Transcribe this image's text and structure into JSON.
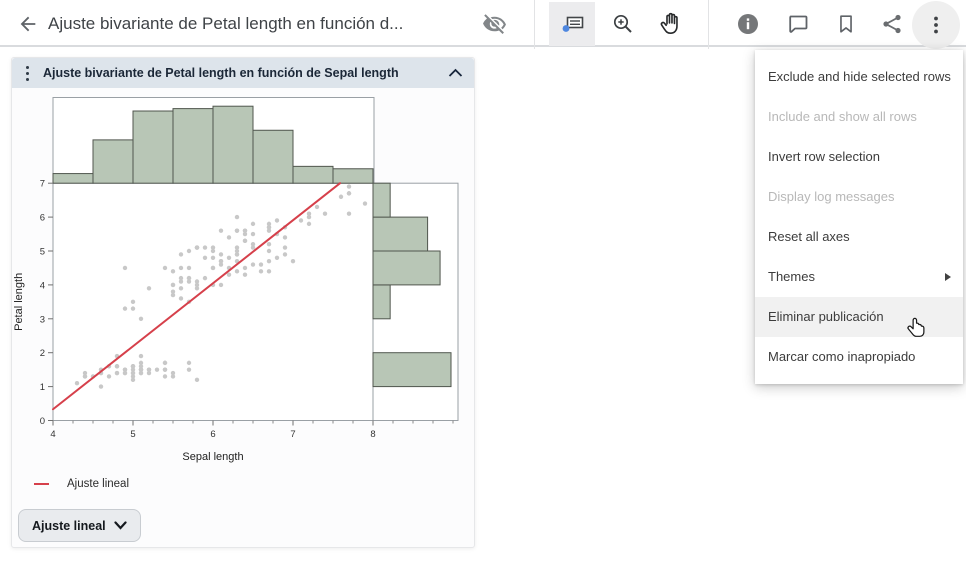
{
  "topbar": {
    "title": "Ajuste bivariante de Petal length en función d...",
    "icons": [
      "back-arrow",
      "visibility-off",
      "datatip-tool",
      "zoom-in-tool",
      "grab-tool",
      "info",
      "comment",
      "bookmark",
      "share",
      "more-vert"
    ],
    "selected_tool": "datatip-tool",
    "active_button": "more-vert"
  },
  "panel": {
    "header_title": "Ajuste bivariante de Petal length en función de Sepal length",
    "legend_label": "Ajuste lineal",
    "fit_button_label": "Ajuste lineal"
  },
  "menu": {
    "items": [
      {
        "label": "Exclude and hide selected rows",
        "enabled": true,
        "highlighted": false,
        "submenu": false
      },
      {
        "label": "Include and show all rows",
        "enabled": false,
        "highlighted": false,
        "submenu": false
      },
      {
        "label": "Invert row selection",
        "enabled": true,
        "highlighted": false,
        "submenu": false
      },
      {
        "label": "Display log messages",
        "enabled": false,
        "highlighted": false,
        "submenu": false
      },
      {
        "label": "Reset all axes",
        "enabled": true,
        "highlighted": false,
        "submenu": false
      },
      {
        "label": "Themes",
        "enabled": true,
        "highlighted": false,
        "submenu": true
      },
      {
        "label": "Eliminar publicación",
        "enabled": true,
        "highlighted": true,
        "submenu": false
      },
      {
        "label": "Marcar como inapropiado",
        "enabled": true,
        "highlighted": false,
        "submenu": false
      }
    ]
  },
  "chart_data": {
    "type": "scatter",
    "title": "Ajuste bivariante de Petal length en función de Sepal length",
    "xlabel": "Sepal length",
    "ylabel": "Petal length",
    "xlim": [
      4,
      9.06
    ],
    "ylim": [
      0,
      7
    ],
    "xticks": [
      4,
      5,
      6,
      7,
      8
    ],
    "yticks": [
      0,
      1,
      2,
      3,
      4,
      5,
      6,
      7
    ],
    "grid": false,
    "legend": [
      {
        "label": "Ajuste lineal",
        "color": "#d6404b",
        "marker": "line"
      }
    ],
    "points": [
      [
        5.1,
        1.4
      ],
      [
        4.9,
        1.4
      ],
      [
        4.7,
        1.3
      ],
      [
        4.6,
        1.5
      ],
      [
        5.0,
        1.4
      ],
      [
        5.4,
        1.7
      ],
      [
        4.6,
        1.4
      ],
      [
        5.0,
        1.5
      ],
      [
        4.4,
        1.4
      ],
      [
        4.9,
        1.5
      ],
      [
        5.4,
        1.5
      ],
      [
        4.8,
        1.6
      ],
      [
        4.8,
        1.4
      ],
      [
        4.3,
        1.1
      ],
      [
        5.8,
        1.2
      ],
      [
        5.7,
        1.5
      ],
      [
        5.4,
        1.3
      ],
      [
        5.1,
        1.4
      ],
      [
        5.7,
        1.7
      ],
      [
        5.1,
        1.5
      ],
      [
        5.4,
        1.7
      ],
      [
        5.1,
        1.5
      ],
      [
        4.6,
        1.0
      ],
      [
        5.1,
        1.7
      ],
      [
        4.8,
        1.9
      ],
      [
        5.0,
        1.6
      ],
      [
        5.0,
        1.6
      ],
      [
        5.2,
        1.5
      ],
      [
        5.2,
        1.4
      ],
      [
        4.7,
        1.6
      ],
      [
        4.8,
        1.6
      ],
      [
        5.4,
        1.5
      ],
      [
        5.2,
        1.5
      ],
      [
        5.5,
        1.4
      ],
      [
        4.9,
        1.5
      ],
      [
        5.0,
        1.2
      ],
      [
        5.5,
        1.3
      ],
      [
        4.9,
        1.4
      ],
      [
        4.4,
        1.3
      ],
      [
        5.1,
        1.5
      ],
      [
        5.0,
        1.3
      ],
      [
        4.5,
        1.3
      ],
      [
        4.4,
        1.3
      ],
      [
        5.0,
        1.6
      ],
      [
        5.1,
        1.9
      ],
      [
        4.8,
        1.4
      ],
      [
        5.1,
        1.6
      ],
      [
        4.6,
        1.4
      ],
      [
        5.3,
        1.5
      ],
      [
        5.0,
        1.4
      ],
      [
        7.0,
        4.7
      ],
      [
        6.4,
        4.5
      ],
      [
        6.9,
        4.9
      ],
      [
        5.5,
        4.0
      ],
      [
        6.5,
        4.6
      ],
      [
        5.7,
        4.5
      ],
      [
        6.3,
        4.7
      ],
      [
        4.9,
        3.3
      ],
      [
        6.6,
        4.6
      ],
      [
        5.2,
        3.9
      ],
      [
        5.0,
        3.5
      ],
      [
        5.9,
        4.2
      ],
      [
        6.0,
        4.0
      ],
      [
        6.1,
        4.7
      ],
      [
        5.6,
        3.6
      ],
      [
        6.7,
        4.4
      ],
      [
        5.6,
        4.5
      ],
      [
        5.8,
        4.1
      ],
      [
        6.2,
        4.5
      ],
      [
        5.6,
        3.9
      ],
      [
        5.9,
        4.8
      ],
      [
        6.1,
        4.0
      ],
      [
        6.3,
        4.9
      ],
      [
        6.1,
        4.7
      ],
      [
        6.4,
        4.3
      ],
      [
        6.6,
        4.4
      ],
      [
        6.8,
        4.8
      ],
      [
        6.7,
        5.0
      ],
      [
        6.0,
        4.5
      ],
      [
        5.7,
        3.5
      ],
      [
        5.5,
        3.8
      ],
      [
        5.5,
        3.7
      ],
      [
        5.8,
        3.9
      ],
      [
        6.0,
        5.1
      ],
      [
        5.4,
        4.5
      ],
      [
        6.0,
        4.5
      ],
      [
        6.7,
        4.7
      ],
      [
        6.3,
        4.4
      ],
      [
        5.6,
        4.1
      ],
      [
        5.5,
        4.0
      ],
      [
        5.5,
        4.4
      ],
      [
        6.1,
        4.6
      ],
      [
        5.8,
        4.0
      ],
      [
        5.0,
        3.3
      ],
      [
        5.6,
        4.2
      ],
      [
        5.7,
        4.2
      ],
      [
        5.7,
        4.2
      ],
      [
        6.2,
        4.3
      ],
      [
        5.1,
        3.0
      ],
      [
        5.7,
        4.1
      ],
      [
        6.3,
        6.0
      ],
      [
        5.8,
        5.1
      ],
      [
        7.1,
        5.9
      ],
      [
        6.3,
        5.6
      ],
      [
        6.5,
        5.8
      ],
      [
        7.6,
        6.6
      ],
      [
        4.9,
        4.5
      ],
      [
        7.3,
        6.3
      ],
      [
        6.7,
        5.8
      ],
      [
        7.2,
        6.1
      ],
      [
        6.5,
        5.1
      ],
      [
        6.4,
        5.3
      ],
      [
        6.8,
        5.5
      ],
      [
        5.7,
        5.0
      ],
      [
        5.8,
        5.1
      ],
      [
        6.4,
        5.3
      ],
      [
        6.5,
        5.5
      ],
      [
        7.7,
        6.7
      ],
      [
        7.7,
        6.9
      ],
      [
        6.0,
        5.0
      ],
      [
        6.9,
        5.7
      ],
      [
        5.6,
        4.9
      ],
      [
        7.7,
        6.7
      ],
      [
        6.3,
        4.9
      ],
      [
        6.7,
        5.7
      ],
      [
        7.2,
        6.0
      ],
      [
        6.2,
        4.8
      ],
      [
        6.1,
        4.9
      ],
      [
        6.4,
        5.6
      ],
      [
        7.2,
        5.8
      ],
      [
        7.4,
        6.1
      ],
      [
        7.9,
        6.4
      ],
      [
        6.4,
        5.6
      ],
      [
        6.3,
        5.1
      ],
      [
        6.1,
        5.6
      ],
      [
        7.7,
        6.1
      ],
      [
        6.3,
        5.6
      ],
      [
        6.4,
        5.5
      ],
      [
        6.0,
        4.8
      ],
      [
        6.9,
        5.4
      ],
      [
        6.7,
        5.6
      ],
      [
        6.9,
        5.1
      ],
      [
        5.8,
        5.1
      ],
      [
        6.8,
        5.9
      ],
      [
        6.7,
        5.7
      ],
      [
        6.7,
        5.2
      ],
      [
        6.3,
        5.0
      ],
      [
        6.5,
        5.2
      ],
      [
        6.2,
        5.4
      ],
      [
        5.9,
        5.1
      ]
    ],
    "fit_line": {
      "label": "Ajuste lineal",
      "slope": 1.8584,
      "intercept": -7.1014,
      "x_start": 4.0,
      "y_clip": 7.0,
      "color": "#d6404b"
    },
    "x_histogram": {
      "variable": "Sepal length",
      "bin_start": 4.0,
      "bin_width": 0.5,
      "counts": [
        4,
        18,
        30,
        31,
        32,
        22,
        7,
        6
      ]
    },
    "y_histogram": {
      "variable": "Petal length",
      "bin_start": 0.0,
      "bin_width": 1.0,
      "counts": [
        0,
        50,
        0,
        11,
        43,
        35,
        11
      ]
    },
    "colors": {
      "histogram_fill": "#b8c6b6",
      "histogram_stroke": "#50564e",
      "point": "#c8c8c8",
      "frame": "#9aa0a5",
      "fit": "#d6404b"
    }
  }
}
